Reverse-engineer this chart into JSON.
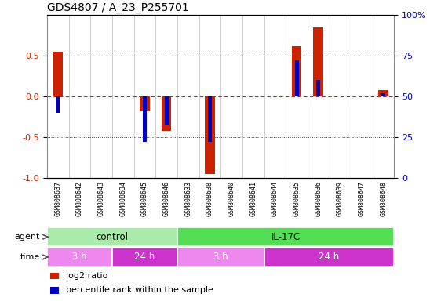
{
  "title": "GDS4807 / A_23_P255701",
  "samples": [
    "GSM808637",
    "GSM808642",
    "GSM808643",
    "GSM808634",
    "GSM808645",
    "GSM808646",
    "GSM808633",
    "GSM808638",
    "GSM808640",
    "GSM808641",
    "GSM808644",
    "GSM808635",
    "GSM808636",
    "GSM808639",
    "GSM808647",
    "GSM808648"
  ],
  "log2_ratio": [
    0.55,
    0.0,
    0.0,
    0.0,
    -0.18,
    -0.42,
    0.0,
    -0.95,
    0.0,
    0.0,
    0.0,
    0.62,
    0.85,
    0.0,
    0.0,
    0.08
  ],
  "percentile": [
    40,
    50,
    50,
    50,
    22,
    32,
    50,
    22,
    50,
    50,
    50,
    72,
    60,
    50,
    50,
    52
  ],
  "ylim": [
    -1.0,
    1.0
  ],
  "right_ylim": [
    0,
    100
  ],
  "yticks_left": [
    -1.0,
    -0.5,
    0.0,
    0.5
  ],
  "yticks_right": [
    0,
    25,
    50,
    75,
    100
  ],
  "agent_groups": [
    {
      "label": "control",
      "start": 0,
      "end": 6,
      "color": "#AAEAAA"
    },
    {
      "label": "IL-17C",
      "start": 6,
      "end": 16,
      "color": "#55DD55"
    }
  ],
  "time_groups": [
    {
      "label": "3 h",
      "start": 0,
      "end": 3,
      "color": "#EE88EE"
    },
    {
      "label": "24 h",
      "start": 3,
      "end": 6,
      "color": "#CC33CC"
    },
    {
      "label": "3 h",
      "start": 6,
      "end": 10,
      "color": "#EE88EE"
    },
    {
      "label": "24 h",
      "start": 10,
      "end": 16,
      "color": "#CC33CC"
    }
  ],
  "bar_color_red": "#CC2200",
  "bar_color_blue": "#0000BB",
  "hline_color": "#CC2200",
  "dotted_line_color": "#333333",
  "bg_color": "#FFFFFF",
  "xticklabel_bg": "#DDDDDD",
  "tick_color_left": "#CC2200",
  "tick_color_right": "#0000BB",
  "legend_items": [
    {
      "color": "#CC2200",
      "label": "log2 ratio"
    },
    {
      "color": "#0000BB",
      "label": "percentile rank within the sample"
    }
  ],
  "red_bar_width": 0.45,
  "blue_bar_width": 0.18
}
